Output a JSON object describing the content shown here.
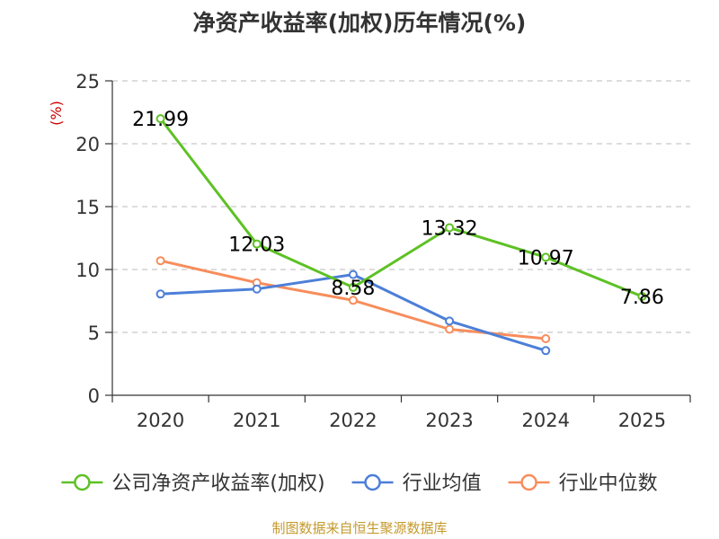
{
  "chart_data": {
    "type": "line",
    "title": "净资产收益率(加权)历年情况(%)",
    "ylabel": "(%)",
    "xlabel": "",
    "categories": [
      "2020",
      "2021",
      "2022",
      "2023",
      "2024",
      "2025"
    ],
    "ylim": [
      0,
      25
    ],
    "yticks": [
      0,
      5,
      10,
      15,
      20,
      25
    ],
    "grid": true,
    "legend_position": "bottom",
    "series": [
      {
        "name": "公司净资产收益率(加权)",
        "color": "#5dc124",
        "values": [
          21.99,
          12.03,
          8.58,
          13.32,
          10.97,
          7.86
        ],
        "labels": [
          "21.99",
          "12.03",
          "8.58",
          "13.32",
          "10.97",
          "7.86"
        ],
        "show_labels": true
      },
      {
        "name": "行业均值",
        "color": "#4c7fd8",
        "values": [
          8.05,
          8.45,
          9.6,
          5.9,
          3.55,
          null
        ],
        "show_labels": false
      },
      {
        "name": "行业中位数",
        "color": "#f78d5c",
        "values": [
          10.7,
          8.95,
          7.55,
          5.25,
          4.5,
          null
        ],
        "show_labels": false
      }
    ]
  },
  "source": "制图数据来自恒生聚源数据库"
}
